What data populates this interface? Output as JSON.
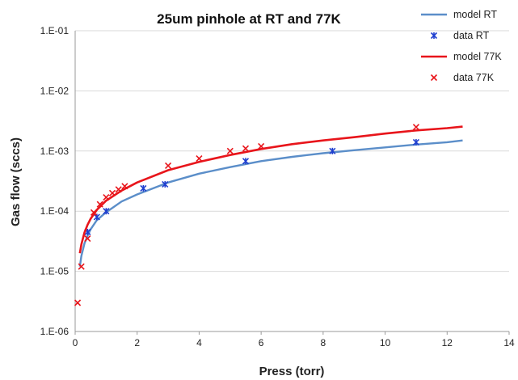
{
  "chart_data": {
    "type": "scatter",
    "title": "25um pinhole at RT and 77K",
    "xlabel": "Press (torr)",
    "ylabel": "Gas flow (sccs)",
    "xlim": [
      0,
      14
    ],
    "ylim": [
      1e-06,
      0.1
    ],
    "yscale": "log",
    "x_ticks": [
      "0",
      "2",
      "4",
      "6",
      "8",
      "10",
      "12",
      "14"
    ],
    "y_ticks": [
      "1.E-06",
      "1.E-05",
      "1.E-04",
      "1.E-03",
      "1.E-02",
      "1.E-01"
    ],
    "grid": "horizontal",
    "legend_position": "top-right",
    "series": [
      {
        "name": "model RT",
        "kind": "line",
        "color": "#5b8ec9",
        "x": [
          0.15,
          0.2,
          0.3,
          0.4,
          0.5,
          0.7,
          1.0,
          1.5,
          2.0,
          3.0,
          4.0,
          5.0,
          6.0,
          7.0,
          8.0,
          9.0,
          10.0,
          11.0,
          12.0,
          12.5
        ],
        "y": [
          1.2e-05,
          1.8e-05,
          2.9e-05,
          3.9e-05,
          5e-05,
          7.1e-05,
          9.6e-05,
          0.000145,
          0.00019,
          0.0003,
          0.00042,
          0.00054,
          0.00068,
          0.0008,
          0.00092,
          0.00103,
          0.00115,
          0.00128,
          0.0014,
          0.0015
        ]
      },
      {
        "name": "data RT",
        "kind": "scatter",
        "marker": "asterisk",
        "color": "#1f3fcf",
        "x": [
          0.4,
          0.7,
          1.0,
          2.2,
          2.9,
          5.5,
          8.3,
          11.0
        ],
        "y": [
          4.5e-05,
          8e-05,
          0.0001,
          0.00024,
          0.00028,
          0.00068,
          0.001,
          0.0014
        ]
      },
      {
        "name": "model 77K",
        "kind": "line",
        "color": "#e8151b",
        "x": [
          0.15,
          0.2,
          0.3,
          0.4,
          0.5,
          0.7,
          1.0,
          1.5,
          2.0,
          3.0,
          4.0,
          5.0,
          6.0,
          7.0,
          8.0,
          9.0,
          10.0,
          11.0,
          12.0,
          12.5
        ],
        "y": [
          2e-05,
          2.8e-05,
          4.4e-05,
          5.9e-05,
          7.5e-05,
          0.000105,
          0.00015,
          0.00022,
          0.0003,
          0.00048,
          0.00066,
          0.00086,
          0.00108,
          0.0013,
          0.0015,
          0.0017,
          0.00195,
          0.0022,
          0.0024,
          0.00255
        ]
      },
      {
        "name": "data 77K",
        "kind": "scatter",
        "marker": "x",
        "color": "#e8151b",
        "x": [
          0.08,
          0.2,
          0.4,
          0.6,
          0.8,
          1.0,
          1.2,
          1.4,
          1.6,
          3.0,
          4.0,
          5.0,
          5.5,
          6.0,
          11.0
        ],
        "y": [
          3e-06,
          1.2e-05,
          3.5e-05,
          9.5e-05,
          0.00013,
          0.00017,
          0.0002,
          0.00023,
          0.00026,
          0.00057,
          0.00075,
          0.001,
          0.0011,
          0.0012,
          0.0025
        ]
      }
    ]
  }
}
